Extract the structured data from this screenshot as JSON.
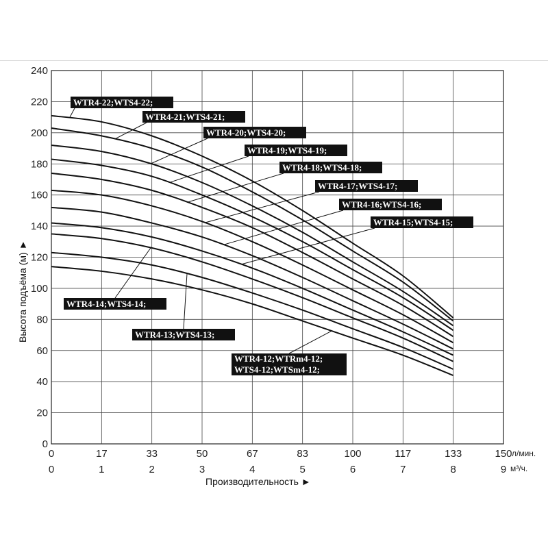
{
  "chart_data": {
    "type": "line",
    "title": "",
    "xlabel": "Производительность ►",
    "ylabel": "Высота подъёма (м) ►",
    "x_unit_primary": "л/мин.",
    "x_unit_secondary": "м³/ч.",
    "x_ticks_primary": [
      "0",
      "17",
      "33",
      "50",
      "67",
      "83",
      "100",
      "117",
      "133",
      "150"
    ],
    "x_ticks_secondary": [
      "0",
      "1",
      "2",
      "3",
      "4",
      "5",
      "6",
      "7",
      "8",
      "9"
    ],
    "y_ticks": [
      "0",
      "20",
      "40",
      "60",
      "80",
      "100",
      "120",
      "140",
      "160",
      "180",
      "200",
      "220",
      "240"
    ],
    "xlim": [
      0,
      9
    ],
    "ylim": [
      0,
      240
    ],
    "grid": true,
    "x": [
      0,
      1,
      2,
      3,
      4,
      5,
      6,
      7,
      8
    ],
    "series": [
      {
        "label": "WTR4-12;WTRm4-12;",
        "label2": "WTS4-12;WTSm4-12;",
        "values": [
          114,
          111,
          106,
          99,
          90,
          79,
          68,
          57,
          44
        ]
      },
      {
        "label": "WTR4-13;WTS4-13;",
        "values": [
          123,
          120,
          115,
          107,
          97,
          86,
          74,
          62,
          48
        ]
      },
      {
        "label": "WTR4-14;WTS4-14;",
        "values": [
          135,
          132,
          126,
          117,
          106,
          94,
          81,
          68,
          53
        ]
      },
      {
        "label": "WTR4-15;WTS4-15;",
        "values": [
          142,
          139,
          133,
          124,
          113,
          100,
          86,
          72,
          57
        ]
      },
      {
        "label": "WTR4-16;WTS4-16;",
        "values": [
          152,
          149,
          142,
          133,
          121,
          107,
          92,
          77,
          61
        ]
      },
      {
        "label": "WTR4-17;WTS4-17;",
        "values": [
          163,
          160,
          153,
          143,
          130,
          115,
          99,
          83,
          65
        ]
      },
      {
        "label": "WTR4-18;WTS4-18;",
        "values": [
          174,
          170,
          163,
          152,
          139,
          123,
          106,
          89,
          69
        ]
      },
      {
        "label": "WTR4-19;WTS4-19;",
        "values": [
          183,
          179,
          172,
          160,
          146,
          130,
          112,
          94,
          73
        ]
      },
      {
        "label": "WTR4-20;WTS4-20;",
        "values": [
          192,
          188,
          180,
          168,
          153,
          136,
          117,
          98,
          76
        ]
      },
      {
        "label": "WTR4-21;WTS4-21;",
        "values": [
          203,
          198,
          190,
          178,
          162,
          144,
          124,
          104,
          79
        ]
      },
      {
        "label": "WTR4-22;WTS4-22;",
        "values": [
          211,
          207,
          198,
          185,
          169,
          150,
          129,
          108,
          81
        ]
      }
    ]
  }
}
